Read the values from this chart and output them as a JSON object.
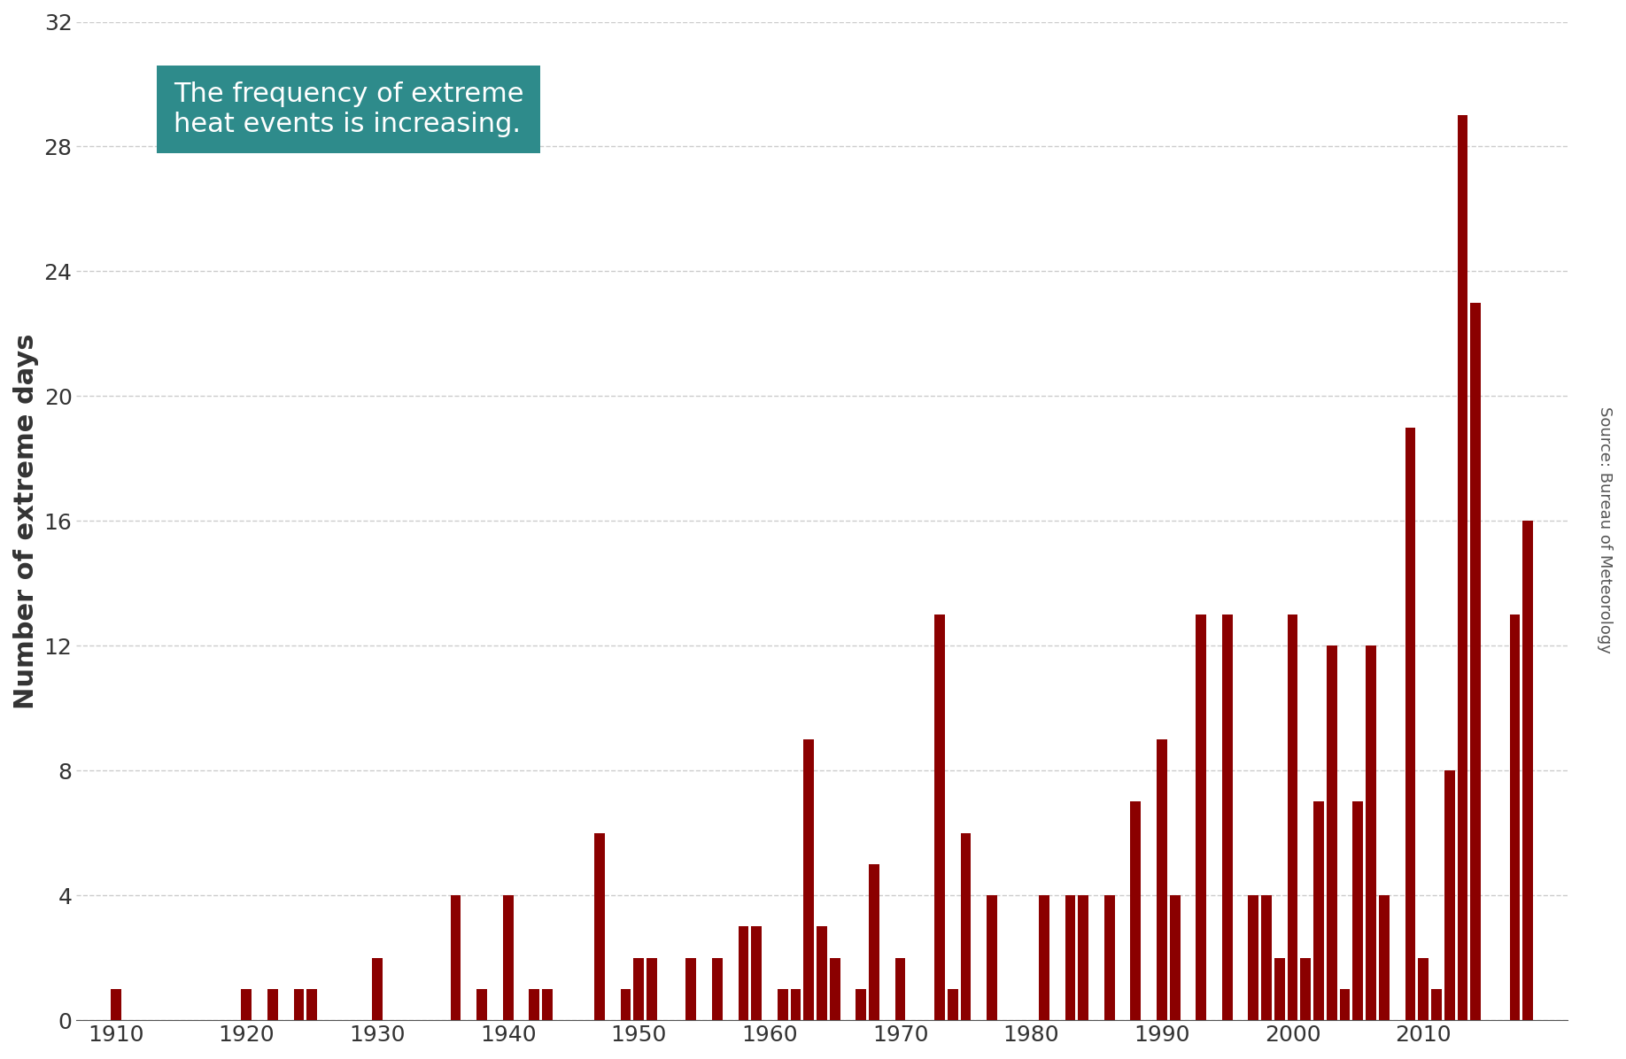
{
  "years": [
    1910,
    1911,
    1912,
    1913,
    1914,
    1915,
    1916,
    1917,
    1918,
    1919,
    1920,
    1921,
    1922,
    1923,
    1924,
    1925,
    1926,
    1927,
    1928,
    1929,
    1930,
    1931,
    1932,
    1933,
    1934,
    1935,
    1936,
    1937,
    1938,
    1939,
    1940,
    1941,
    1942,
    1943,
    1944,
    1945,
    1946,
    1947,
    1948,
    1949,
    1950,
    1951,
    1952,
    1953,
    1954,
    1955,
    1956,
    1957,
    1958,
    1959,
    1960,
    1961,
    1962,
    1963,
    1964,
    1965,
    1966,
    1967,
    1968,
    1969,
    1970,
    1971,
    1972,
    1973,
    1974,
    1975,
    1976,
    1977,
    1978,
    1979,
    1980,
    1981,
    1982,
    1983,
    1984,
    1985,
    1986,
    1987,
    1988,
    1989,
    1990,
    1991,
    1992,
    1993,
    1994,
    1995,
    1996,
    1997,
    1998,
    1999,
    2000,
    2001,
    2002,
    2003,
    2004,
    2005,
    2006,
    2007,
    2008,
    2009,
    2010,
    2011,
    2012,
    2013,
    2014,
    2015,
    2016,
    2017,
    2018
  ],
  "values": [
    1,
    0,
    0,
    0,
    0,
    0,
    0,
    0,
    0,
    0,
    1,
    0,
    1,
    0,
    1,
    1,
    0,
    0,
    0,
    0,
    2,
    0,
    0,
    0,
    0,
    0,
    4,
    0,
    1,
    0,
    4,
    0,
    1,
    1,
    0,
    0,
    0,
    6,
    0,
    1,
    2,
    2,
    0,
    0,
    2,
    0,
    2,
    0,
    3,
    3,
    0,
    1,
    1,
    9,
    3,
    2,
    0,
    1,
    5,
    0,
    2,
    0,
    0,
    13,
    1,
    6,
    0,
    4,
    0,
    0,
    0,
    4,
    0,
    4,
    4,
    0,
    4,
    0,
    7,
    0,
    9,
    4,
    0,
    13,
    0,
    13,
    0,
    4,
    4,
    2,
    13,
    2,
    7,
    12,
    1,
    7,
    12,
    4,
    0,
    19,
    2,
    1,
    8,
    29,
    23,
    0,
    0,
    13,
    16
  ],
  "bar_color": "#8B0000",
  "ylabel": "Number of extreme days",
  "annotation_text": "The frequency of extreme\nheat events is increasing.",
  "annotation_bg": "#2E8B8B",
  "annotation_text_color": "#FFFFFF",
  "source_text": "Source: Bureau of Meteorology",
  "ylim": [
    0,
    32
  ],
  "yticks": [
    0,
    4,
    8,
    12,
    16,
    20,
    24,
    28,
    32
  ],
  "xticks": [
    1910,
    1920,
    1930,
    1940,
    1950,
    1960,
    1970,
    1980,
    1990,
    2000,
    2010
  ],
  "grid_color": "#CCCCCC",
  "background_color": "#FFFFFF",
  "ylabel_fontsize": 22,
  "annotation_fontsize": 22
}
